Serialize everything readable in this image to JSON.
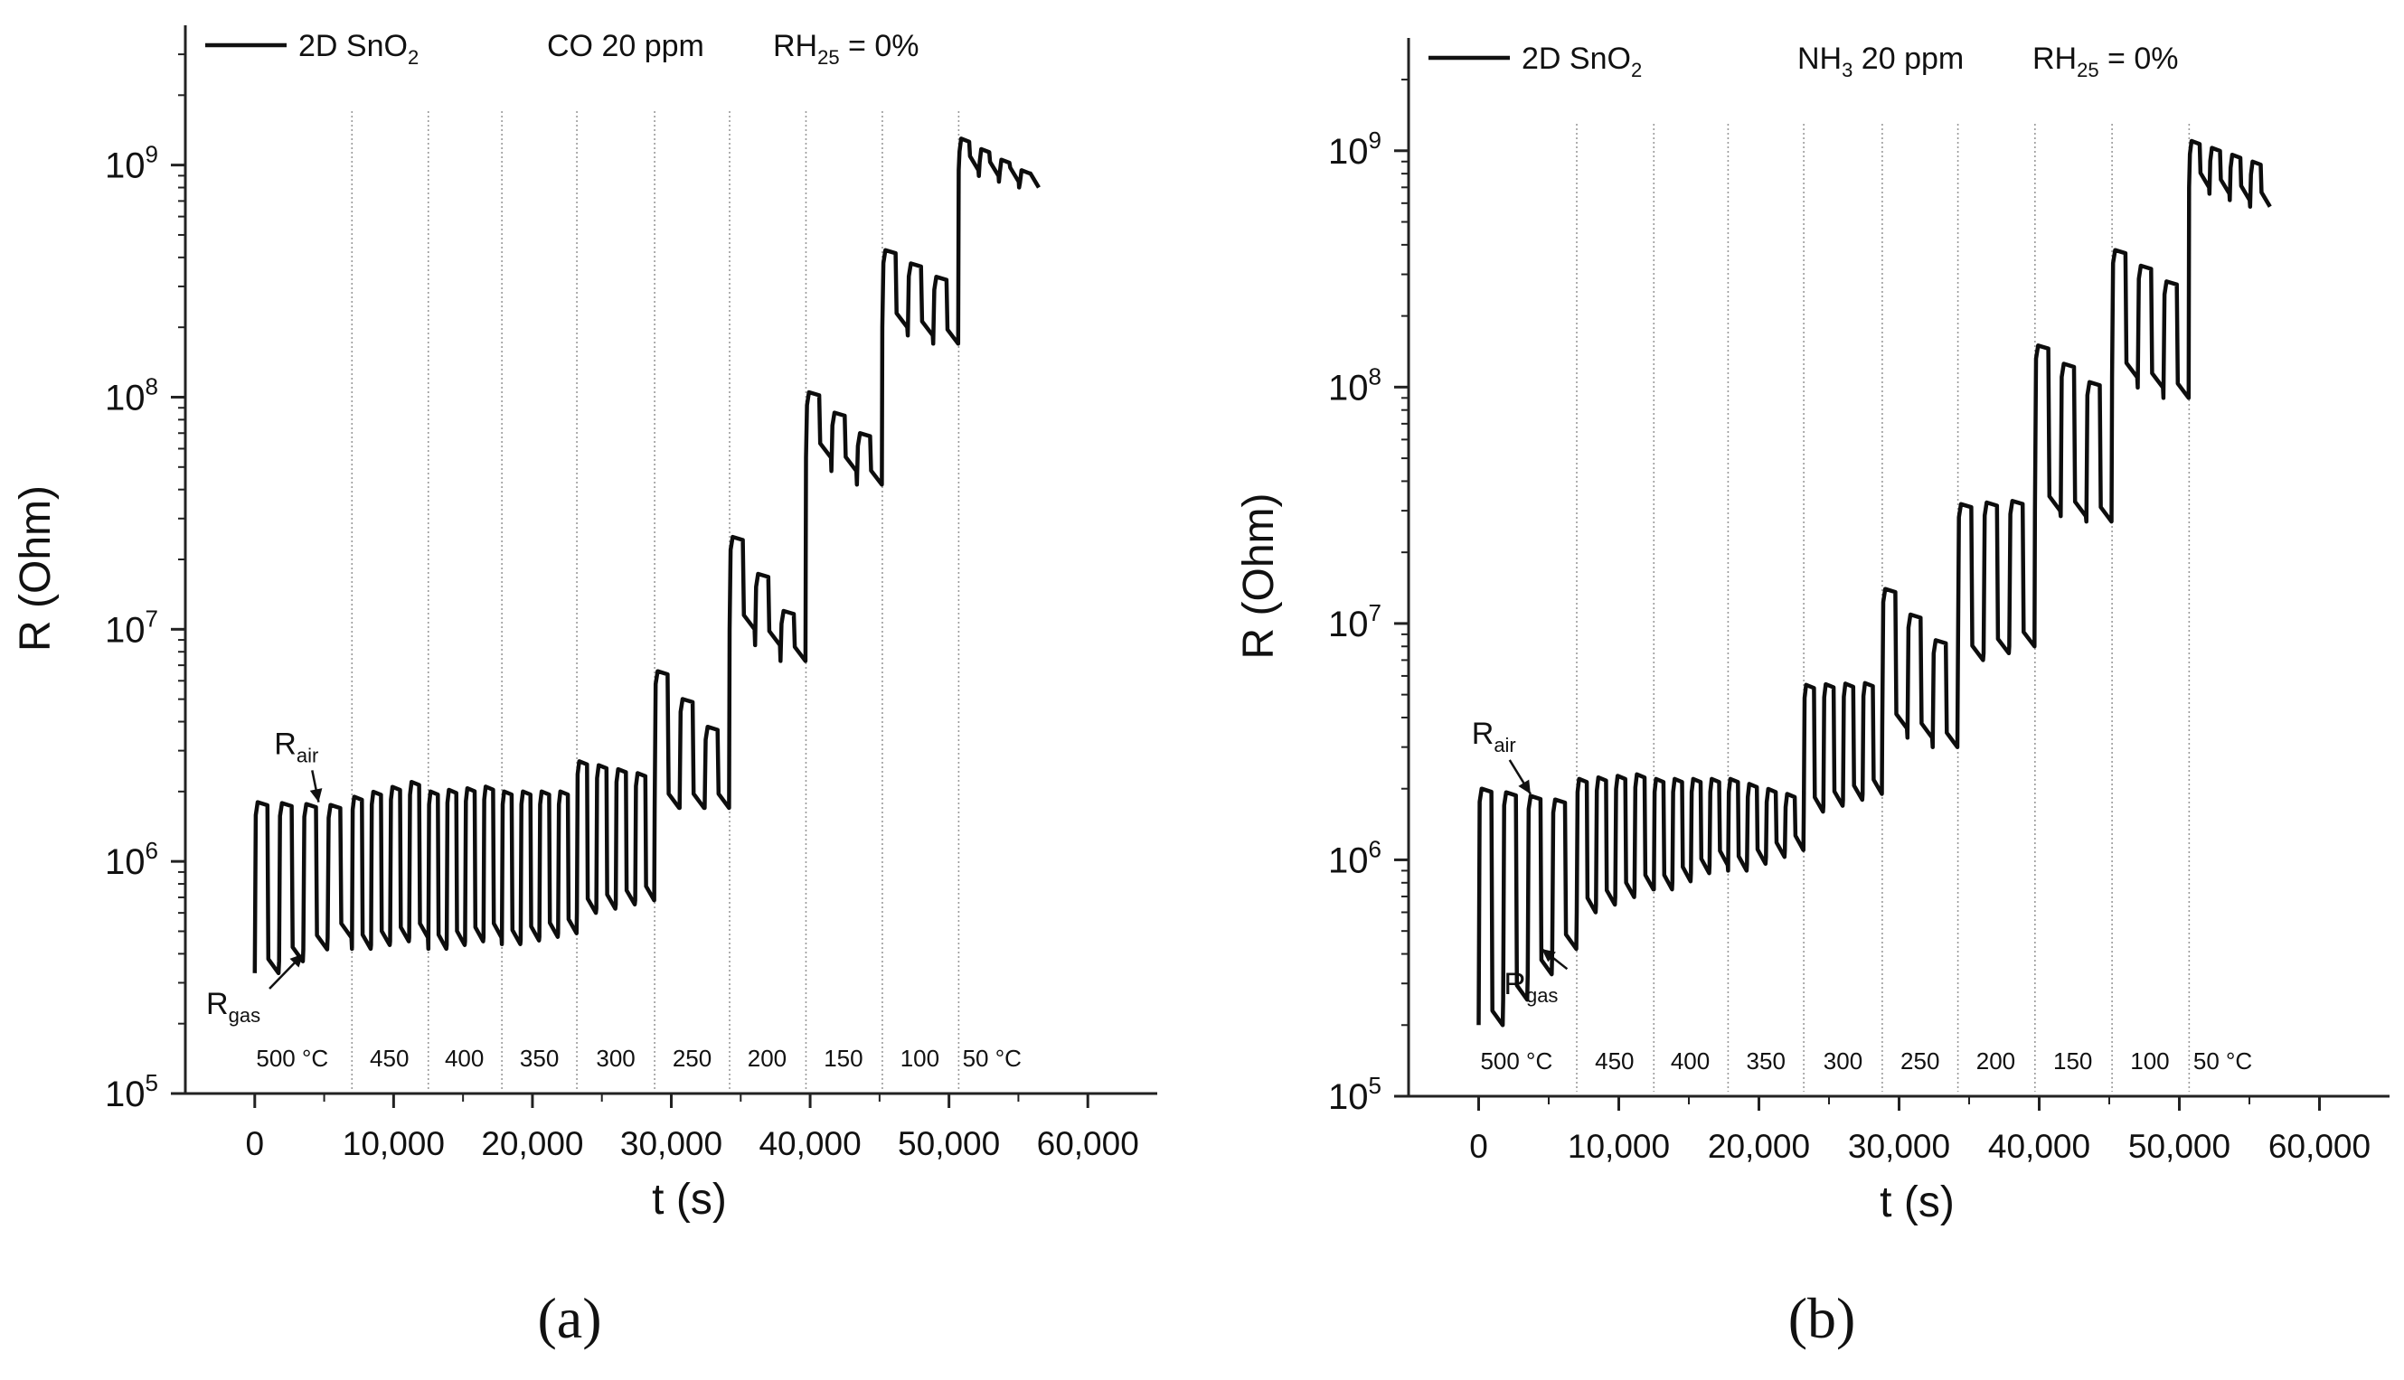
{
  "chart_data": [
    {
      "type": "line",
      "panel_label": "(a)",
      "xlabel": "t (s)",
      "ylabel": "R (Ohm)",
      "xlim": [
        -5000,
        65000
      ],
      "ylim": [
        100000,
        4000000000
      ],
      "yscale": "log",
      "x_ticks": [
        0,
        10000,
        20000,
        30000,
        40000,
        50000,
        60000
      ],
      "x_tick_labels": [
        "0",
        "10,000",
        "20,000",
        "30,000",
        "40,000",
        "50,000",
        "60,000"
      ],
      "y_ticks": [
        100000,
        1000000,
        10000000,
        100000000,
        1000000000
      ],
      "y_tick_mantissa": "10",
      "y_tick_exponents": [
        "5",
        "6",
        "7",
        "8",
        "9"
      ],
      "legend": {
        "series_name": "2D SnO",
        "series_sub": "2",
        "gas_text": "CO 20 ppm",
        "rh_main": "RH",
        "rh_sub": "25",
        "rh_value": " = 0%"
      },
      "dividers": [
        7000,
        12500,
        17800,
        23200,
        28800,
        34200,
        39700,
        45200,
        50700
      ],
      "temperature_labels": [
        {
          "x": 2700,
          "text": "500 °C"
        },
        {
          "x": 9700,
          "text": "450"
        },
        {
          "x": 15100,
          "text": "400"
        },
        {
          "x": 20500,
          "text": "350"
        },
        {
          "x": 26000,
          "text": "300"
        },
        {
          "x": 31500,
          "text": "250"
        },
        {
          "x": 36900,
          "text": "200"
        },
        {
          "x": 42400,
          "text": "150"
        },
        {
          "x": 47900,
          "text": "100"
        },
        {
          "x": 53100,
          "text": "50 °C"
        }
      ],
      "annotations": [
        {
          "main": "R",
          "sub": "air",
          "x": 1400,
          "y": 2900000,
          "arrow_to_x": 4600,
          "arrow_to_y": 1800000
        },
        {
          "main": "R",
          "sub": "gas",
          "x": -3500,
          "y": 220000,
          "arrow_to_x": 3500,
          "arrow_to_y": 400000
        }
      ],
      "series": [
        {
          "name": "2D SnO2",
          "segments": [
            {
              "t0": 0,
              "t1": 7000,
              "air": 1800000,
              "gas": 330000,
              "air_end": 1750000,
              "gas_end": 470000,
              "cycles": 4
            },
            {
              "t0": 7000,
              "t1": 12500,
              "air": 1900000,
              "gas": 420000,
              "air_end": 2200000,
              "gas_end": 470000,
              "cycles": 4
            },
            {
              "t0": 12500,
              "t1": 17800,
              "air": 2000000,
              "gas": 420000,
              "air_end": 2100000,
              "gas_end": 470000,
              "cycles": 4
            },
            {
              "t0": 17800,
              "t1": 23200,
              "air": 2000000,
              "gas": 440000,
              "air_end": 2000000,
              "gas_end": 490000,
              "cycles": 4
            },
            {
              "t0": 23200,
              "t1": 28800,
              "air": 2700000,
              "gas": 600000,
              "air_end": 2400000,
              "gas_end": 680000,
              "cycles": 4
            },
            {
              "t0": 28800,
              "t1": 34200,
              "air": 6600000,
              "gas": 1700000,
              "air_end": 3800000,
              "gas_end": 1700000,
              "cycles": 3
            },
            {
              "t0": 34200,
              "t1": 39700,
              "air": 25000000,
              "gas": 10000000,
              "air_end": 12000000,
              "gas_end": 7300000,
              "cycles": 3
            },
            {
              "t0": 39700,
              "t1": 45200,
              "air": 105000000,
              "gas": 55000000,
              "air_end": 70000000,
              "gas_end": 42000000,
              "cycles": 3
            },
            {
              "t0": 45200,
              "t1": 50700,
              "air": 430000000,
              "gas": 200000000,
              "air_end": 330000000,
              "gas_end": 170000000,
              "cycles": 3
            },
            {
              "t0": 50700,
              "t1": 56500,
              "air": 1300000000,
              "gas": 950000000,
              "air_end": 950000000,
              "gas_end": 800000000,
              "cycles": 4
            }
          ]
        }
      ]
    },
    {
      "type": "line",
      "panel_label": "(b)",
      "xlabel": "t (s)",
      "ylabel": "R (Ohm)",
      "xlim": [
        -5000,
        65000
      ],
      "ylim": [
        100000,
        3000000000
      ],
      "yscale": "log",
      "x_ticks": [
        0,
        10000,
        20000,
        30000,
        40000,
        50000,
        60000
      ],
      "x_tick_labels": [
        "0",
        "10,000",
        "20,000",
        "30,000",
        "40,000",
        "50,000",
        "60,000"
      ],
      "y_ticks": [
        100000,
        1000000,
        10000000,
        100000000,
        1000000000
      ],
      "y_tick_mantissa": "10",
      "y_tick_exponents": [
        "5",
        "6",
        "7",
        "8",
        "9"
      ],
      "legend": {
        "series_name": "2D SnO",
        "series_sub": "2",
        "gas_main": "NH",
        "gas_sub": "3",
        "gas_rest": " 20 ppm",
        "rh_main": "RH",
        "rh_sub": "25",
        "rh_value": " = 0%"
      },
      "dividers": [
        7000,
        12500,
        17800,
        23200,
        28800,
        34200,
        39700,
        45200,
        50700
      ],
      "temperature_labels": [
        {
          "x": 2700,
          "text": "500 °C"
        },
        {
          "x": 9700,
          "text": "450"
        },
        {
          "x": 15100,
          "text": "400"
        },
        {
          "x": 20500,
          "text": "350"
        },
        {
          "x": 26000,
          "text": "300"
        },
        {
          "x": 31500,
          "text": "250"
        },
        {
          "x": 36900,
          "text": "200"
        },
        {
          "x": 42400,
          "text": "150"
        },
        {
          "x": 47900,
          "text": "100"
        },
        {
          "x": 53100,
          "text": "50 °C"
        }
      ],
      "annotations": [
        {
          "main": "R",
          "sub": "air",
          "x": -500,
          "y": 3100000,
          "arrow_to_x": 3700,
          "arrow_to_y": 1900000
        },
        {
          "main": "R",
          "sub": "gas",
          "x": 1800,
          "y": 270000,
          "arrow_to_x": 4500,
          "arrow_to_y": 420000
        }
      ],
      "series": [
        {
          "name": "2D SnO2",
          "segments": [
            {
              "t0": 0,
              "t1": 7000,
              "air": 2000000,
              "gas": 200000,
              "air_end": 1800000,
              "gas_end": 420000,
              "cycles": 4
            },
            {
              "t0": 7000,
              "t1": 12500,
              "air": 2200000,
              "gas": 600000,
              "air_end": 2300000,
              "gas_end": 750000,
              "cycles": 4
            },
            {
              "t0": 12500,
              "t1": 17800,
              "air": 2200000,
              "gas": 750000,
              "air_end": 2200000,
              "gas_end": 950000,
              "cycles": 4
            },
            {
              "t0": 17800,
              "t1": 23200,
              "air": 2200000,
              "gas": 900000,
              "air_end": 1900000,
              "gas_end": 1100000,
              "cycles": 4
            },
            {
              "t0": 23200,
              "t1": 28800,
              "air": 5500000,
              "gas": 1600000,
              "air_end": 5600000,
              "gas_end": 1900000,
              "cycles": 4
            },
            {
              "t0": 28800,
              "t1": 34200,
              "air": 14000000,
              "gas": 3600000,
              "air_end": 8500000,
              "gas_end": 3000000,
              "cycles": 3
            },
            {
              "t0": 34200,
              "t1": 39700,
              "air": 32000000,
              "gas": 7000000,
              "air_end": 33000000,
              "gas_end": 8000000,
              "cycles": 3
            },
            {
              "t0": 39700,
              "t1": 45200,
              "air": 150000000,
              "gas": 30000000,
              "air_end": 105000000,
              "gas_end": 27000000,
              "cycles": 3
            },
            {
              "t0": 45200,
              "t1": 50700,
              "air": 380000000,
              "gas": 110000000,
              "air_end": 280000000,
              "gas_end": 90000000,
              "cycles": 3
            },
            {
              "t0": 50700,
              "t1": 56500,
              "air": 1100000000,
              "gas": 700000000,
              "air_end": 900000000,
              "gas_end": 580000000,
              "cycles": 4
            }
          ]
        }
      ]
    }
  ]
}
